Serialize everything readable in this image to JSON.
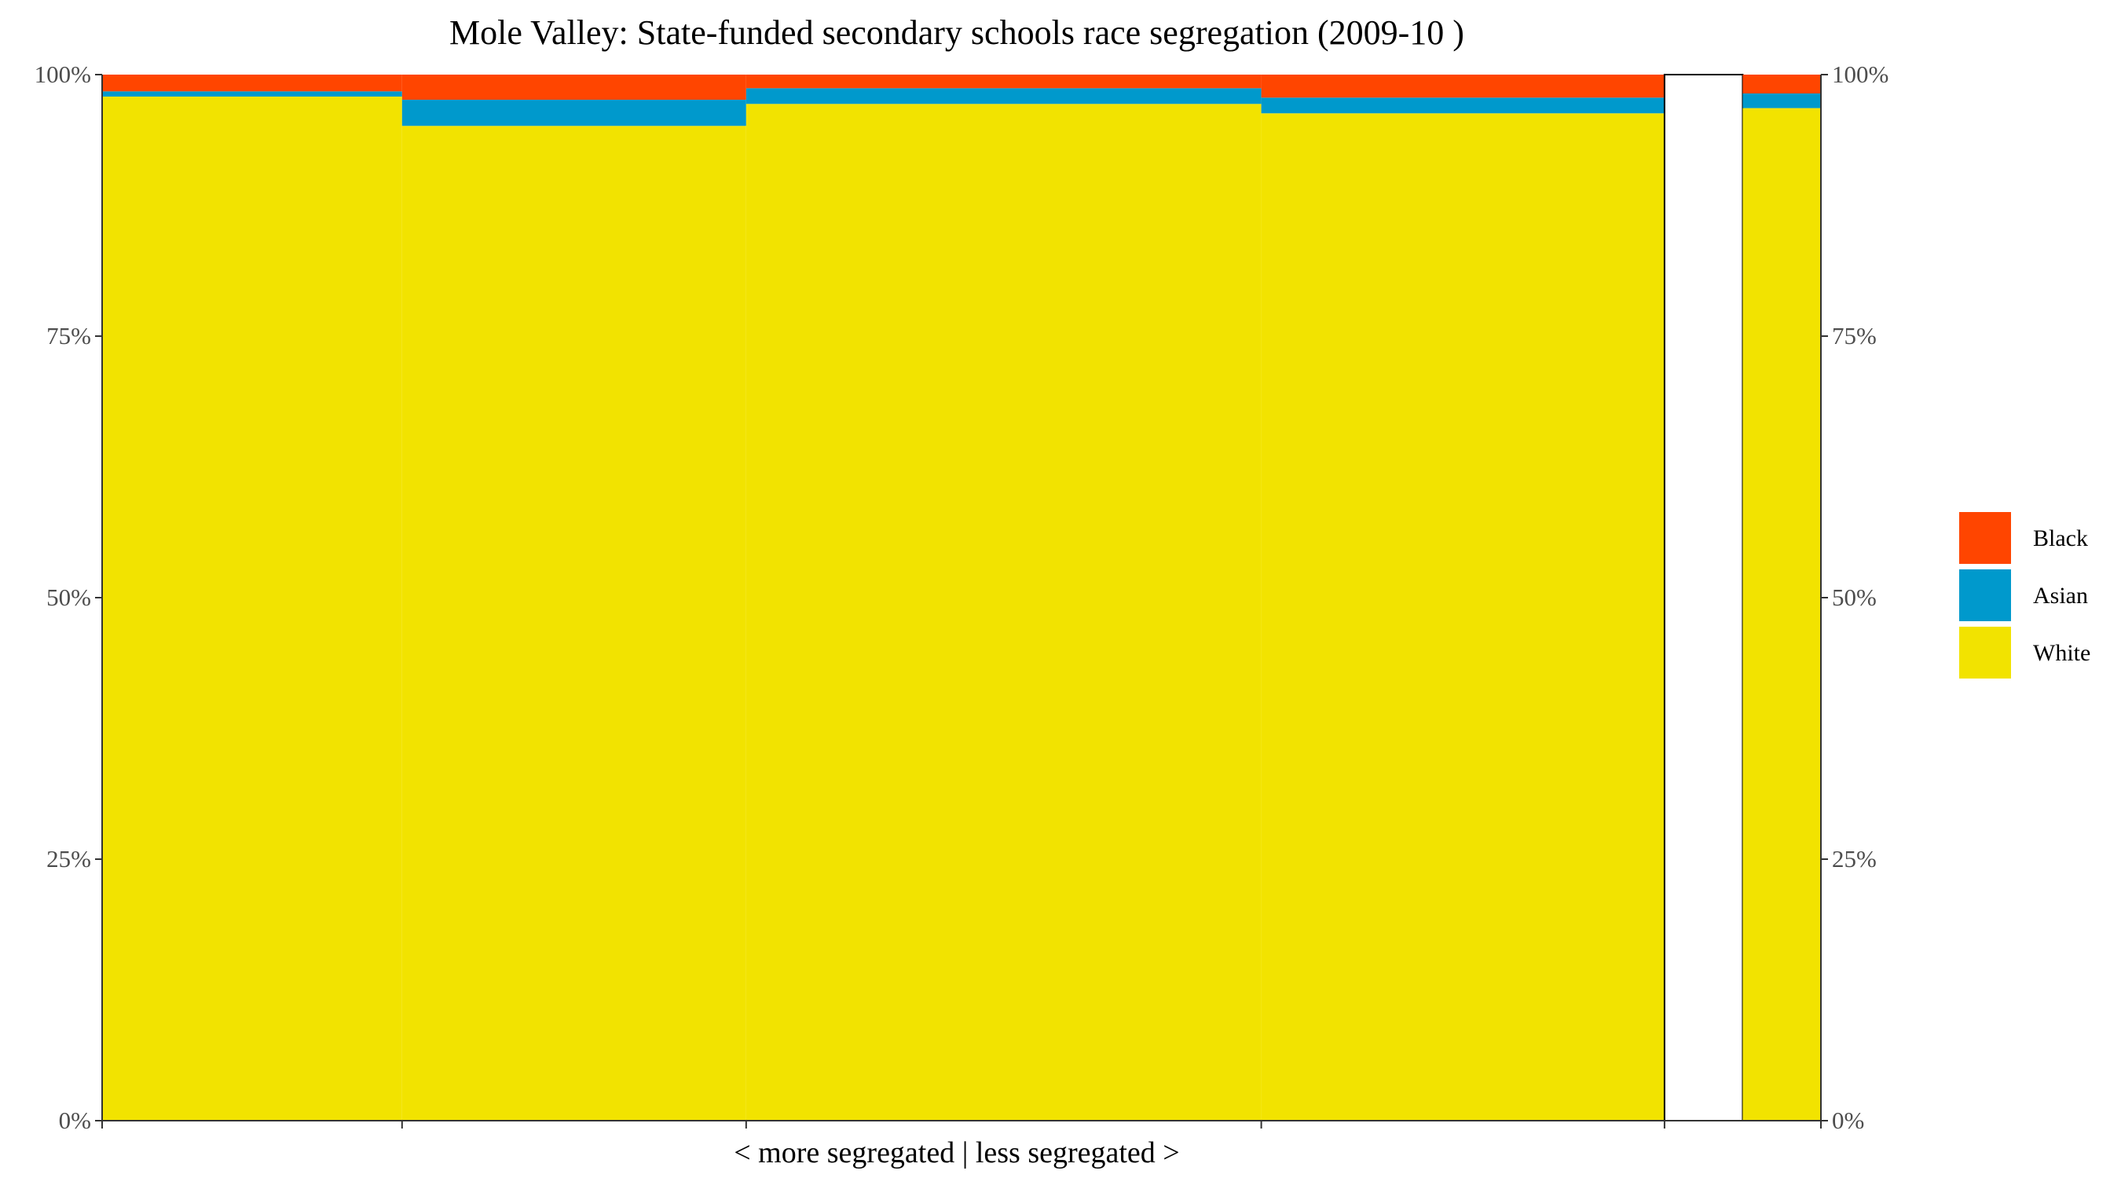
{
  "chart_data": {
    "type": "bar",
    "variant": "stacked-proportional-width (mosaic)",
    "title": "Mole Valley: State-funded secondary schools race segregation (2009-10 )",
    "xlabel": "< more segregated | less segregated >",
    "ylabel": "",
    "ylim": [
      0,
      1
    ],
    "y_ticks": [
      "0%",
      "25%",
      "50%",
      "75%",
      "100%"
    ],
    "y_tick_values": [
      0,
      0.25,
      0.5,
      0.75,
      1.0
    ],
    "secondary_y_axis": true,
    "grid": false,
    "legend_position": "right",
    "series_order": [
      "White",
      "Asian",
      "Black"
    ],
    "legend": [
      {
        "name": "Black",
        "color": "#FF4500"
      },
      {
        "name": "Asian",
        "color": "#0099CC"
      },
      {
        "name": "White",
        "color": "#F2E300"
      }
    ],
    "colors": {
      "Black": "#FF4500",
      "Asian": "#0099CC",
      "White": "#F2E300"
    },
    "bars": [
      {
        "share_of_x": 0.1745,
        "White": 0.979,
        "Asian": 0.005,
        "Black": 0.016
      },
      {
        "share_of_x": 0.2002,
        "White": 0.951,
        "Asian": 0.025,
        "Black": 0.024
      },
      {
        "share_of_x": 0.2997,
        "White": 0.972,
        "Asian": 0.015,
        "Black": 0.013
      },
      {
        "share_of_x": 0.2346,
        "White": 0.963,
        "Asian": 0.015,
        "Black": 0.022
      },
      {
        "share_of_x": 0.0455,
        "White": 0.0,
        "Asian": 0.0,
        "Black": 0.0,
        "outlined": true
      },
      {
        "share_of_x": 0.0455,
        "White": 0.968,
        "Asian": 0.014,
        "Black": 0.018
      }
    ],
    "x_tick_after_bars": [
      0,
      1,
      2,
      3,
      4,
      6
    ]
  }
}
